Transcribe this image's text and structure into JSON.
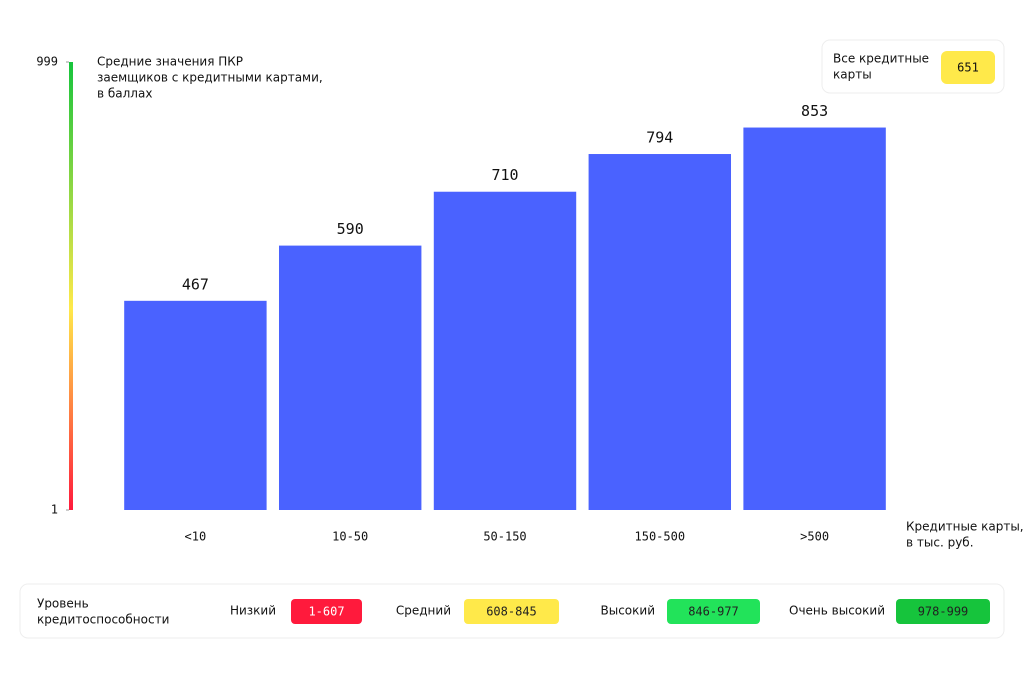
{
  "chart_data": {
    "type": "bar",
    "title_lines": [
      "Средние значения ПКР",
      "заемщиков с кредитными картами,",
      "в баллах"
    ],
    "categories": [
      "<10",
      "10-50",
      "50-150",
      "150-500",
      ">500"
    ],
    "values": [
      467,
      590,
      710,
      794,
      853
    ],
    "color": "#4a62ff",
    "ylim": [
      1,
      999
    ],
    "yticks": [
      1,
      999
    ],
    "x_label_lines": [
      "Кредитные карты,",
      "в тыс. руб."
    ],
    "reference": {
      "label_lines": [
        "Все кредитные",
        "карты"
      ],
      "value": 651,
      "color": "#ffe94a"
    },
    "levels": {
      "title_lines": [
        "Уровень",
        "кредитоспособности"
      ],
      "items": [
        {
          "name": "Низкий",
          "range": "1-607",
          "color": "#ff1a3c",
          "text_color": "#ffffff"
        },
        {
          "name": "Средний",
          "range": "608-845",
          "color": "#ffe94a",
          "text_color": "#222222"
        },
        {
          "name": "Высокий",
          "range": "846-977",
          "color": "#22e35a",
          "text_color": "#222222"
        },
        {
          "name": "Очень высокий",
          "range": "978-999",
          "color": "#16c43c",
          "text_color": "#222222"
        }
      ]
    }
  }
}
